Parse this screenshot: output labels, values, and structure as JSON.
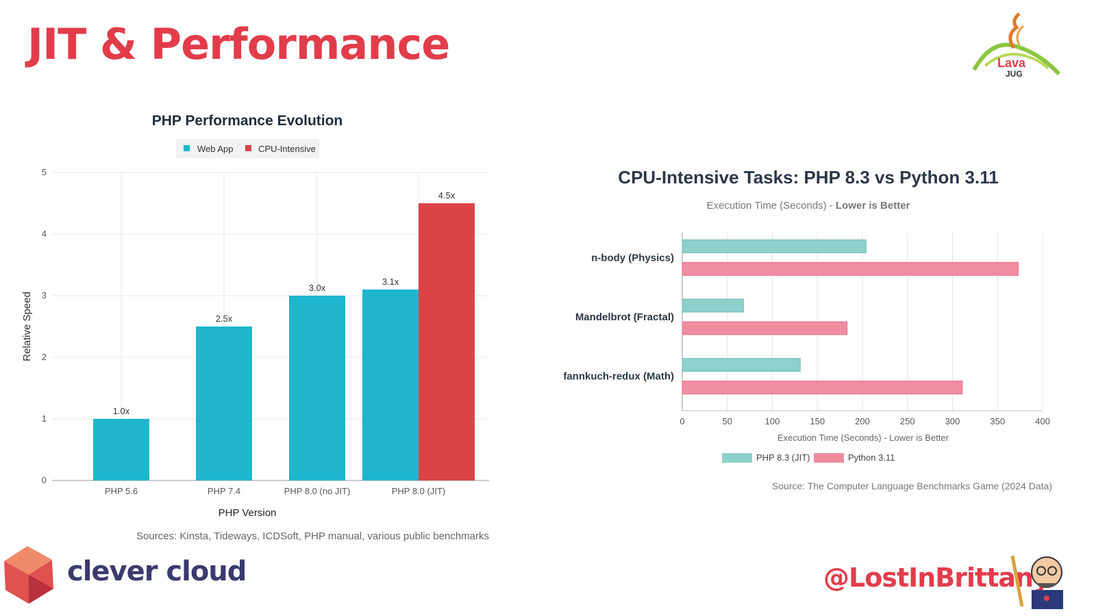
{
  "slide": {
    "title": "JIT & Performance",
    "twitter_handle": "@LostInBrittany",
    "brand": "clever cloud",
    "lava_logo_text": "Lava JUG"
  },
  "colors": {
    "title_red": "#e23c4a",
    "web_app": "#1fb6cc",
    "cpu_intensive": "#db4447",
    "php83": "#8dd0cc",
    "python": "#f08ca0"
  },
  "chart_data": [
    {
      "type": "bar",
      "title": "PHP Performance Evolution",
      "xlabel": "PHP Version",
      "ylabel": "Relative Speed",
      "ylim": [
        0,
        5
      ],
      "yticks": [
        "0",
        "1",
        "2",
        "3",
        "4",
        "5"
      ],
      "categories": [
        "PHP 5.6",
        "PHP 7.4",
        "PHP 8.0 (no JIT)",
        "PHP 8.0 (JIT)"
      ],
      "series": [
        {
          "name": "Web App",
          "values": [
            1.0,
            2.5,
            3.0,
            3.1
          ],
          "labels": [
            "1.0x",
            "2.5x",
            "3.0x",
            "3.1x"
          ]
        },
        {
          "name": "CPU-Intensive",
          "values": [
            null,
            null,
            null,
            4.5
          ],
          "labels": [
            "",
            "",
            "",
            "4.5x"
          ]
        }
      ],
      "legend": "top",
      "grid": true,
      "source": "Sources: Kinsta, Tideways, ICDSoft, PHP manual, various public benchmarks"
    },
    {
      "type": "bar",
      "orientation": "horizontal",
      "title": "CPU-Intensive Tasks: PHP 8.3 vs Python 3.11",
      "subtitle_plain": "Execution Time (Seconds) -",
      "subtitle_bold": "Lower is Better",
      "xlabel": "Execution Time (Seconds) - Lower is Better",
      "xlim": [
        0,
        400
      ],
      "xticks": [
        "0",
        "50",
        "100",
        "150",
        "200",
        "250",
        "300",
        "350",
        "400"
      ],
      "categories": [
        "n-body (Physics)",
        "Mandelbrot (Fractal)",
        "fannkuch-redux (Math)"
      ],
      "series": [
        {
          "name": "PHP 8.3 (JIT)",
          "values": [
            204,
            68,
            131
          ]
        },
        {
          "name": "Python 3.11",
          "values": [
            373,
            183,
            311
          ]
        }
      ],
      "legend": "bottom",
      "grid": true,
      "source": "Source: The Computer Language Benchmarks Game (2024 Data)"
    }
  ]
}
